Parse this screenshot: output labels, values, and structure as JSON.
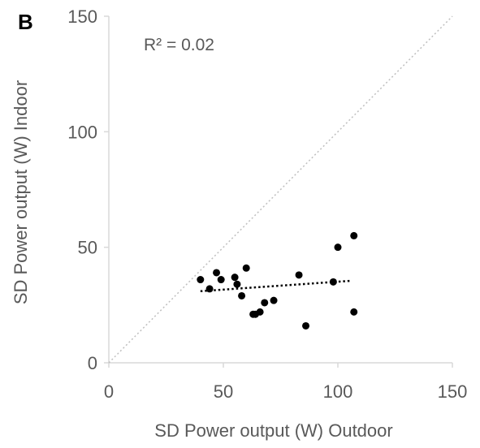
{
  "panel_label": "B",
  "annotation": "R² = 0.02",
  "chart_data": {
    "type": "scatter",
    "title": "",
    "xlabel": "SD Power output (W)  Outdoor",
    "ylabel": "SD Power output (W)  Indoor",
    "xlim": [
      0,
      150
    ],
    "ylim": [
      0,
      150
    ],
    "xticks": [
      0,
      50,
      100,
      150
    ],
    "yticks": [
      0,
      50,
      100,
      150
    ],
    "grid": false,
    "series": [
      {
        "points": [
          [
            40,
            36
          ],
          [
            44,
            32
          ],
          [
            47,
            39
          ],
          [
            49,
            36
          ],
          [
            55,
            37
          ],
          [
            56,
            34
          ],
          [
            58,
            29
          ],
          [
            60,
            41
          ],
          [
            63,
            21
          ],
          [
            64,
            21
          ],
          [
            66,
            22
          ],
          [
            68,
            26
          ],
          [
            72,
            27
          ],
          [
            83,
            38
          ],
          [
            86,
            16
          ],
          [
            98,
            35
          ],
          [
            100,
            50
          ],
          [
            107,
            55
          ],
          [
            107,
            22
          ]
        ]
      }
    ],
    "trendline": {
      "style": "dotted",
      "x": [
        40,
        106
      ],
      "y": [
        31,
        35.5
      ]
    },
    "reference_line": {
      "style": "dotted",
      "label": "",
      "x": [
        0,
        150
      ],
      "y": [
        0,
        150
      ]
    },
    "colors": {
      "points": "#000000",
      "trendline": "#000000",
      "reference": "#bfbfbf",
      "axis": "#d9d9d9",
      "text": "#595959"
    }
  }
}
